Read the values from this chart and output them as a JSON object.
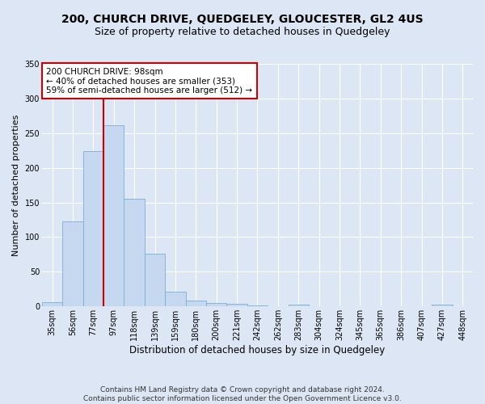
{
  "title1": "200, CHURCH DRIVE, QUEDGELEY, GLOUCESTER, GL2 4US",
  "title2": "Size of property relative to detached houses in Quedgeley",
  "xlabel": "Distribution of detached houses by size in Quedgeley",
  "ylabel": "Number of detached properties",
  "footer1": "Contains HM Land Registry data © Crown copyright and database right 2024.",
  "footer2": "Contains public sector information licensed under the Open Government Licence v3.0.",
  "annotation_line1": "200 CHURCH DRIVE: 98sqm",
  "annotation_line2": "← 40% of detached houses are smaller (353)",
  "annotation_line3": "59% of semi-detached houses are larger (512) →",
  "bin_labels": [
    "35sqm",
    "56sqm",
    "77sqm",
    "97sqm",
    "118sqm",
    "139sqm",
    "159sqm",
    "180sqm",
    "200sqm",
    "221sqm",
    "242sqm",
    "262sqm",
    "283sqm",
    "304sqm",
    "324sqm",
    "345sqm",
    "365sqm",
    "386sqm",
    "407sqm",
    "427sqm",
    "448sqm"
  ],
  "bar_values": [
    6,
    123,
    224,
    262,
    155,
    76,
    21,
    8,
    5,
    4,
    2,
    0,
    3,
    0,
    0,
    0,
    0,
    0,
    0,
    3,
    0
  ],
  "bar_color": "#c5d8f0",
  "bar_edge_color": "#7bafd4",
  "background_color": "#dce6f5",
  "plot_bg_color": "#dce6f5",
  "grid_color": "#ffffff",
  "annotation_box_color": "#ffffff",
  "annotation_box_edge": "#cc0000",
  "red_line_color": "#cc0000",
  "red_line_x": 2.5,
  "ylim": [
    0,
    350
  ],
  "yticks": [
    0,
    50,
    100,
    150,
    200,
    250,
    300,
    350
  ],
  "title1_fontsize": 10,
  "title2_fontsize": 9,
  "xlabel_fontsize": 8.5,
  "ylabel_fontsize": 8,
  "tick_fontsize": 7,
  "annotation_fontsize": 7.5,
  "footer_fontsize": 6.5
}
